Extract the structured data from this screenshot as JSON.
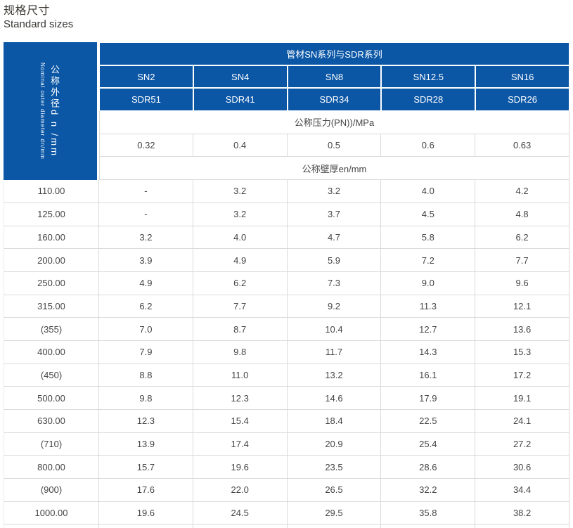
{
  "page": {
    "title_zh": "规格尺寸",
    "title_en": "Standard sizes"
  },
  "table": {
    "left_header": {
      "zh": "公称外径d n /mm",
      "en": "Nominal outer diameter dn/mm"
    },
    "main_header": "管材SN系列与SDR系列",
    "sn_headers": [
      "SN2",
      "SN4",
      "SN8",
      "SN12.5",
      "SN16"
    ],
    "sdr_headers": [
      "SDR51",
      "SDR41",
      "SDR34",
      "SDR28",
      "SDR26"
    ],
    "pressure_label": "公称压力(PN))/MPa",
    "pressure_values": [
      "0.32",
      "0.4",
      "0.5",
      "0.6",
      "0.63"
    ],
    "wall_thickness_label": "公称壁厚en/mm",
    "rows": [
      {
        "dn": "110.00",
        "values": [
          "-",
          "3.2",
          "3.2",
          "4.0",
          "4.2"
        ]
      },
      {
        "dn": "125.00",
        "values": [
          "-",
          "3.2",
          "3.7",
          "4.5",
          "4.8"
        ]
      },
      {
        "dn": "160.00",
        "values": [
          "3.2",
          "4.0",
          "4.7",
          "5.8",
          "6.2"
        ]
      },
      {
        "dn": "200.00",
        "values": [
          "3.9",
          "4.9",
          "5.9",
          "7.2",
          "7.7"
        ]
      },
      {
        "dn": "250.00",
        "values": [
          "4.9",
          "6.2",
          "7.3",
          "9.0",
          "9.6"
        ]
      },
      {
        "dn": "315.00",
        "values": [
          "6.2",
          "7.7",
          "9.2",
          "11.3",
          "12.1"
        ]
      },
      {
        "dn": "(355)",
        "values": [
          "7.0",
          "8.7",
          "10.4",
          "12.7",
          "13.6"
        ]
      },
      {
        "dn": "400.00",
        "values": [
          "7.9",
          "9.8",
          "11.7",
          "14.3",
          "15.3"
        ]
      },
      {
        "dn": "(450)",
        "values": [
          "8.8",
          "11.0",
          "13.2",
          "16.1",
          "17.2"
        ]
      },
      {
        "dn": "500.00",
        "values": [
          "9.8",
          "12.3",
          "14.6",
          "17.9",
          "19.1"
        ]
      },
      {
        "dn": "630.00",
        "values": [
          "12.3",
          "15.4",
          "18.4",
          "22.5",
          "24.1"
        ]
      },
      {
        "dn": "(710)",
        "values": [
          "13.9",
          "17.4",
          "20.9",
          "25.4",
          "27.2"
        ]
      },
      {
        "dn": "800.00",
        "values": [
          "15.7",
          "19.6",
          "23.5",
          "28.6",
          "30.6"
        ]
      },
      {
        "dn": "(900)",
        "values": [
          "17.6",
          "22.0",
          "26.5",
          "32.2",
          "34.4"
        ]
      },
      {
        "dn": "1000.00",
        "values": [
          "19.6",
          "24.5",
          "29.5",
          "35.8",
          "38.2"
        ]
      }
    ],
    "colors": {
      "header_blue": "#0b57a6",
      "body_border": "#dadada",
      "body_text": "#454545"
    }
  }
}
